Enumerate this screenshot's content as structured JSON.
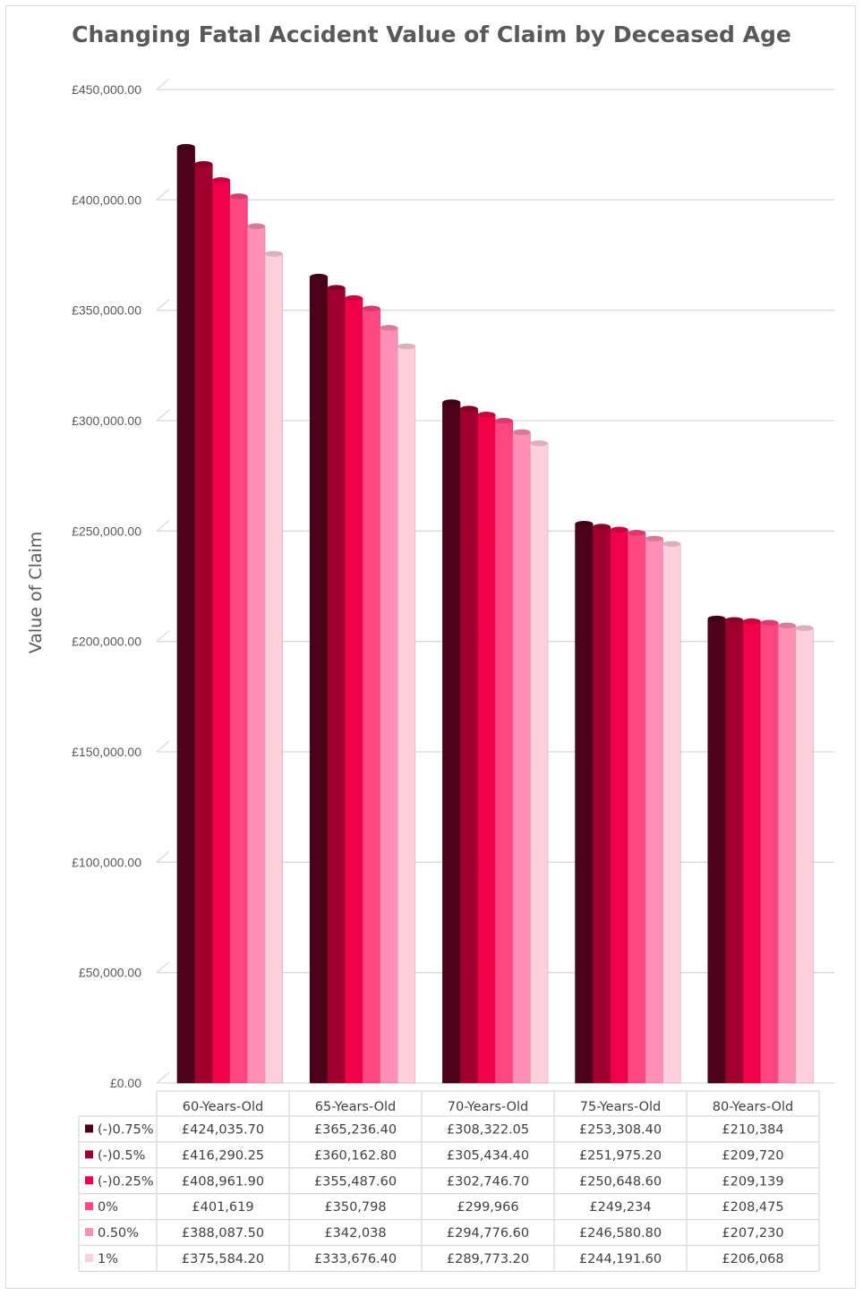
{
  "chart_data": {
    "type": "bar",
    "title": "Changing Fatal Accident Value of Claim by Deceased Age",
    "ylabel": "Value of Claim",
    "xlabel": "",
    "ylim": [
      0,
      450000
    ],
    "y_ticks": [
      "£0.00",
      "£50,000.00",
      "£100,000.00",
      "£150,000.00",
      "£200,000.00",
      "£250,000.00",
      "£300,000.00",
      "£350,000.00",
      "£400,000.00",
      "£450,000.00"
    ],
    "grid": true,
    "legend": "data-table",
    "categories": [
      "60-Years-Old",
      "65-Years-Old",
      "70-Years-Old",
      "75-Years-Old",
      "80-Years-Old"
    ],
    "series": [
      {
        "name": "(-)0.75%",
        "color": "#4d0019",
        "values": [
          424035.7,
          365236.4,
          308322.05,
          253308.4,
          210384
        ],
        "labels": [
          "£424,035.70",
          "£365,236.40",
          "£308,322.05",
          "£253,308.40",
          "£210,384"
        ]
      },
      {
        "name": "(-)0.5%",
        "color": "#a0002e",
        "values": [
          416290.25,
          360162.8,
          305434.4,
          251975.2,
          209720
        ],
        "labels": [
          "£416,290.25",
          "£360,162.80",
          "£305,434.40",
          "£251,975.20",
          "£209,720"
        ]
      },
      {
        "name": "(-)0.25%",
        "color": "#f0004a",
        "values": [
          408961.9,
          355487.6,
          302746.7,
          250648.6,
          209139
        ],
        "labels": [
          "£408,961.90",
          "£355,487.60",
          "£302,746.70",
          "£250,648.60",
          "£209,139"
        ]
      },
      {
        "name": "0%",
        "color": "#ff4682",
        "values": [
          401619,
          350798,
          299966,
          249234,
          208475
        ],
        "labels": [
          "£401,619",
          "£350,798",
          "£299,966",
          "£249,234",
          "£208,475"
        ]
      },
      {
        "name": "0.50%",
        "color": "#ff8fb4",
        "values": [
          388087.5,
          342038,
          294776.6,
          246580.8,
          207230
        ],
        "labels": [
          "£388,087.50",
          "£342,038",
          "£294,776.60",
          "£246,580.80",
          "£207,230"
        ]
      },
      {
        "name": "1%",
        "color": "#ffcfdd",
        "values": [
          375584.2,
          333676.4,
          289773.2,
          244191.6,
          206068
        ],
        "labels": [
          "£375,584.20",
          "£333,676.40",
          "£289,773.20",
          "£244,191.60",
          "£206,068"
        ]
      }
    ]
  }
}
